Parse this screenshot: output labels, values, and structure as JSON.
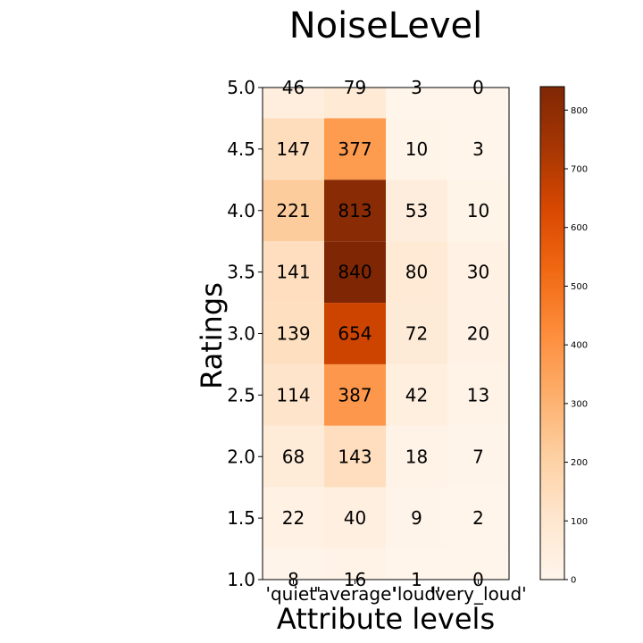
{
  "chart_data": {
    "type": "heatmap",
    "title": "NoiseLevel",
    "xlabel": "Attribute levels",
    "ylabel": "Ratings",
    "x_categories": [
      "'quiet'",
      "'average'",
      "'loud'",
      "'very_loud'"
    ],
    "y_ticks": [
      "5.0",
      "4.5",
      "4.0",
      "3.5",
      "3.0",
      "2.5",
      "2.0",
      "1.5",
      "1.0"
    ],
    "rows": [
      {
        "rating": "5.0",
        "values": [
          46,
          79,
          3,
          0
        ]
      },
      {
        "rating": "4.5",
        "values": [
          147,
          377,
          10,
          3
        ]
      },
      {
        "rating": "4.0",
        "values": [
          221,
          813,
          53,
          10
        ]
      },
      {
        "rating": "3.5",
        "values": [
          141,
          840,
          80,
          30
        ]
      },
      {
        "rating": "3.0",
        "values": [
          139,
          654,
          72,
          20
        ]
      },
      {
        "rating": "2.5",
        "values": [
          114,
          387,
          42,
          13
        ]
      },
      {
        "rating": "2.0",
        "values": [
          68,
          143,
          18,
          7
        ]
      },
      {
        "rating": "1.5",
        "values": [
          22,
          40,
          9,
          2
        ]
      },
      {
        "rating": "1.0",
        "values": [
          8,
          16,
          1,
          0
        ]
      }
    ],
    "colormap": "Oranges",
    "colorbar": {
      "min": 0,
      "max": 840,
      "ticks": [
        "0",
        "100",
        "200",
        "300",
        "400",
        "500",
        "600",
        "700",
        "800"
      ]
    },
    "grid": false
  }
}
